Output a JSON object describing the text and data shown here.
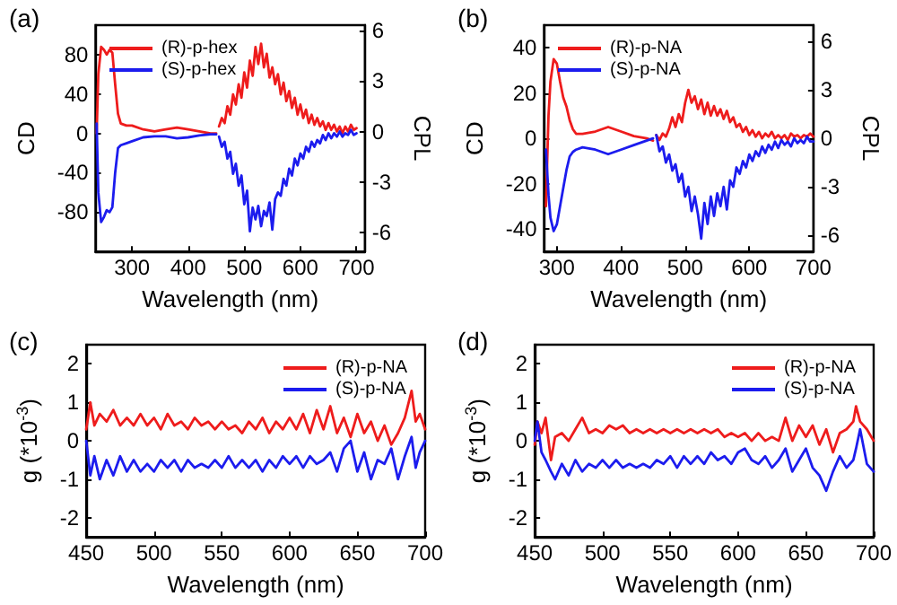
{
  "chart_data": [
    {
      "type": "line",
      "title": "(a)",
      "xlabel": "Wavelength (nm)",
      "ylabel": "CD",
      "y2label": "CPL",
      "xlim": [
        235,
        715
      ],
      "xticks": [
        300,
        400,
        500,
        600,
        700
      ],
      "ylim": [
        -120,
        110
      ],
      "yticks": [
        -80,
        -40,
        0,
        40,
        80
      ],
      "y2lim": [
        -7.1,
        6.3
      ],
      "y2ticks": [
        -6,
        -3,
        0,
        3,
        6
      ],
      "legend": "top left",
      "grid": false,
      "marker": "none",
      "line_style": "solid",
      "series": [
        {
          "name": "(R)-p-hex",
          "color": "#ee1c1c",
          "x": [
            237,
            240,
            245,
            250,
            255,
            260,
            265,
            270,
            275,
            280,
            290,
            300,
            320,
            340,
            360,
            380,
            400,
            420,
            440,
            450
          ],
          "values": [
            0,
            60,
            88,
            85,
            80,
            85,
            82,
            50,
            20,
            10,
            8,
            8,
            4,
            2,
            4,
            6,
            4,
            2,
            0,
            0
          ]
        },
        {
          "name": "(S)-p-hex",
          "color": "#1c1cee",
          "x": [
            237,
            240,
            245,
            250,
            255,
            260,
            265,
            270,
            275,
            280,
            290,
            300,
            320,
            340,
            360,
            380,
            400,
            420,
            440,
            450
          ],
          "values": [
            10,
            -60,
            -90,
            -85,
            -78,
            -80,
            -75,
            -40,
            -15,
            -12,
            -10,
            -8,
            -4,
            -3,
            -3,
            -5,
            -4,
            -2,
            -1,
            -1
          ]
        },
        {
          "color": "#ee1c1c",
          "axis": "y2",
          "x": [
            455,
            460,
            465,
            470,
            475,
            480,
            485,
            490,
            495,
            500,
            505,
            510,
            515,
            520,
            525,
            530,
            535,
            540,
            545,
            550,
            555,
            560,
            565,
            570,
            575,
            580,
            585,
            590,
            595,
            600,
            605,
            610,
            615,
            620,
            625,
            630,
            635,
            640,
            645,
            650,
            655,
            660,
            665,
            670,
            675,
            680,
            685,
            690,
            695,
            700
          ],
          "values": [
            0.3,
            0.8,
            0.5,
            1.5,
            1.0,
            2.2,
            1.6,
            2.8,
            2.0,
            3.5,
            2.6,
            4.2,
            3.3,
            5.0,
            4.0,
            5.2,
            3.8,
            4.6,
            3.2,
            3.8,
            2.8,
            3.4,
            2.2,
            2.9,
            1.8,
            2.4,
            1.4,
            2.0,
            1.0,
            1.6,
            0.8,
            1.3,
            0.5,
            1.0,
            0.4,
            0.8,
            0.3,
            0.6,
            0.1,
            0.5,
            0.1,
            0.4,
            0.0,
            0.3,
            -0.1,
            0.3,
            0.0,
            0.4,
            0.1,
            0.2
          ]
        },
        {
          "color": "#1c1cee",
          "axis": "y2",
          "x": [
            455,
            460,
            465,
            470,
            475,
            480,
            485,
            490,
            495,
            500,
            505,
            510,
            515,
            520,
            525,
            530,
            535,
            540,
            545,
            550,
            555,
            560,
            565,
            570,
            575,
            580,
            585,
            590,
            595,
            600,
            605,
            610,
            615,
            620,
            625,
            630,
            635,
            640,
            645,
            650,
            655,
            660,
            665,
            670,
            675,
            680,
            685,
            690,
            695,
            700
          ],
          "values": [
            -0.3,
            -0.9,
            -0.6,
            -1.6,
            -1.2,
            -2.5,
            -1.9,
            -3.2,
            -2.6,
            -4.3,
            -3.5,
            -5.9,
            -4.5,
            -5.2,
            -4.4,
            -5.6,
            -4.7,
            -5.0,
            -4.2,
            -5.8,
            -4.0,
            -3.6,
            -3.8,
            -2.8,
            -3.2,
            -2.2,
            -2.6,
            -1.6,
            -2.0,
            -1.3,
            -1.6,
            -0.9,
            -1.2,
            -0.6,
            -0.9,
            -0.5,
            -0.7,
            -0.2,
            -0.5,
            -0.1,
            -0.4,
            -0.1,
            -0.3,
            0.0,
            -0.3,
            -0.1,
            -0.2,
            0.1,
            -0.2,
            -0.1
          ]
        }
      ]
    },
    {
      "type": "line",
      "title": "(b)",
      "xlabel": "Wavelength (nm)",
      "ylabel": "CD",
      "y2label": "CPL",
      "xlim": [
        280,
        700
      ],
      "xticks": [
        300,
        400,
        500,
        600,
        700
      ],
      "ylim": [
        -50,
        50
      ],
      "yticks": [
        -40,
        -20,
        0,
        20,
        40
      ],
      "y2lim": [
        -7,
        7
      ],
      "y2ticks": [
        -6,
        -3,
        0,
        3,
        6
      ],
      "legend": "top left",
      "grid": false,
      "marker": "none",
      "line_style": "solid",
      "series": [
        {
          "name": "(R)-p-NA",
          "color": "#ee1c1c",
          "x": [
            283,
            287,
            290,
            295,
            300,
            305,
            310,
            315,
            320,
            325,
            330,
            340,
            360,
            380,
            400,
            420,
            440,
            450
          ],
          "values": [
            -30,
            10,
            25,
            35,
            33,
            25,
            18,
            14,
            8,
            4,
            2,
            2,
            3,
            5,
            3,
            1,
            0,
            -1
          ]
        },
        {
          "name": "(S)-p-NA",
          "color": "#1c1cee",
          "x": [
            283,
            287,
            290,
            295,
            300,
            305,
            310,
            315,
            320,
            325,
            330,
            340,
            360,
            380,
            400,
            420,
            440,
            450
          ],
          "values": [
            -5,
            -25,
            -35,
            -41,
            -38,
            -30,
            -22,
            -14,
            -8,
            -6,
            -5,
            -4,
            -5,
            -7,
            -5,
            -3,
            -1,
            0
          ]
        },
        {
          "color": "#ee1c1c",
          "axis": "y2",
          "x": [
            455,
            460,
            465,
            470,
            475,
            480,
            485,
            490,
            495,
            500,
            505,
            510,
            515,
            520,
            525,
            530,
            535,
            540,
            545,
            550,
            555,
            560,
            565,
            570,
            575,
            580,
            585,
            590,
            595,
            600,
            605,
            610,
            615,
            620,
            625,
            630,
            635,
            640,
            645,
            650,
            655,
            660,
            665,
            670,
            675,
            680,
            685,
            690,
            695,
            700
          ],
          "values": [
            0.2,
            -0.1,
            0.3,
            0.1,
            0.6,
            1.3,
            0.7,
            1.5,
            1.0,
            2.2,
            3.0,
            2.2,
            2.6,
            1.8,
            2.4,
            1.5,
            2.2,
            1.4,
            2.0,
            1.4,
            1.8,
            1.2,
            1.7,
            1.0,
            1.3,
            0.7,
            0.9,
            0.4,
            0.7,
            0.2,
            0.5,
            0.1,
            0.4,
            0.0,
            0.3,
            0.1,
            0.4,
            0.0,
            0.2,
            0.0,
            0.2,
            -0.1,
            0.3,
            0.1,
            0.2,
            0.0,
            0.2,
            0.1,
            0.3,
            0.1
          ]
        },
        {
          "color": "#1c1cee",
          "axis": "y2",
          "x": [
            455,
            460,
            465,
            470,
            475,
            480,
            485,
            490,
            495,
            500,
            505,
            510,
            515,
            520,
            525,
            530,
            535,
            540,
            545,
            550,
            555,
            560,
            565,
            570,
            575,
            580,
            585,
            590,
            595,
            600,
            605,
            610,
            615,
            620,
            625,
            630,
            635,
            640,
            645,
            650,
            655,
            660,
            665,
            670,
            675,
            680,
            685,
            690,
            695,
            700
          ],
          "values": [
            0.2,
            -0.8,
            -0.5,
            -1.5,
            -1.0,
            -2.0,
            -1.6,
            -2.7,
            -2.2,
            -3.6,
            -3.0,
            -4.5,
            -3.6,
            -4.7,
            -6.2,
            -4.0,
            -5.3,
            -3.6,
            -4.8,
            -3.4,
            -4.2,
            -3.0,
            -4.4,
            -2.6,
            -3.0,
            -1.8,
            -2.2,
            -1.4,
            -1.8,
            -1.0,
            -1.4,
            -0.8,
            -1.1,
            -0.5,
            -0.9,
            -0.4,
            -0.7,
            -0.2,
            -0.6,
            -0.1,
            -0.4,
            -0.2,
            -0.5,
            0.0,
            -0.3,
            -0.1,
            -0.3,
            0.1,
            -0.2,
            -0.2
          ]
        }
      ]
    },
    {
      "type": "line",
      "title": "(c)",
      "xlabel": "Wavelength (nm)",
      "ylabel": "g (*10$^{-3}$)",
      "xlim": [
        450,
        700
      ],
      "xticks": [
        450,
        500,
        550,
        600,
        650,
        700
      ],
      "ylim": [
        -2.5,
        2.5
      ],
      "yticks": [
        -2,
        -1,
        0,
        1,
        2
      ],
      "legend": "top right",
      "grid": false,
      "marker": "none",
      "line_style": "solid",
      "series": [
        {
          "name": "(R)-p-NA",
          "color": "#ee1c1c",
          "x": [
            450,
            453,
            456,
            460,
            465,
            470,
            475,
            480,
            485,
            490,
            495,
            500,
            505,
            510,
            515,
            520,
            525,
            530,
            535,
            540,
            545,
            550,
            555,
            560,
            565,
            570,
            575,
            580,
            585,
            590,
            595,
            600,
            605,
            610,
            615,
            620,
            625,
            630,
            635,
            640,
            645,
            650,
            655,
            660,
            665,
            670,
            675,
            680,
            685,
            690,
            693,
            696,
            700
          ],
          "values": [
            0.3,
            1.0,
            0.4,
            0.7,
            0.5,
            0.8,
            0.4,
            0.6,
            0.4,
            0.7,
            0.4,
            0.6,
            0.3,
            0.7,
            0.4,
            0.5,
            0.3,
            0.6,
            0.4,
            0.5,
            0.3,
            0.5,
            0.3,
            0.4,
            0.2,
            0.5,
            0.3,
            0.6,
            0.2,
            0.5,
            0.3,
            0.6,
            0.3,
            0.7,
            0.2,
            0.8,
            0.3,
            0.9,
            0.2,
            0.6,
            0.1,
            0.7,
            0.2,
            0.5,
            0.0,
            0.4,
            -0.1,
            0.2,
            0.6,
            1.3,
            0.5,
            0.7,
            0.3
          ]
        },
        {
          "name": "(S)-p-NA",
          "color": "#1c1cee",
          "x": [
            450,
            453,
            456,
            460,
            465,
            470,
            475,
            480,
            485,
            490,
            495,
            500,
            505,
            510,
            515,
            520,
            525,
            530,
            535,
            540,
            545,
            550,
            555,
            560,
            565,
            570,
            575,
            580,
            585,
            590,
            595,
            600,
            605,
            610,
            615,
            620,
            625,
            630,
            635,
            640,
            645,
            650,
            655,
            660,
            665,
            670,
            675,
            680,
            685,
            690,
            693,
            696,
            700
          ],
          "values": [
            0.0,
            -0.9,
            -0.4,
            -1.0,
            -0.5,
            -0.9,
            -0.4,
            -0.8,
            -0.5,
            -0.8,
            -0.6,
            -0.8,
            -0.5,
            -0.7,
            -0.5,
            -0.8,
            -0.5,
            -0.7,
            -0.6,
            -0.7,
            -0.5,
            -0.7,
            -0.4,
            -0.7,
            -0.5,
            -0.7,
            -0.5,
            -0.8,
            -0.5,
            -0.7,
            -0.4,
            -0.6,
            -0.4,
            -0.7,
            -0.4,
            -0.6,
            -0.5,
            -0.3,
            -0.8,
            -0.2,
            0.0,
            -0.8,
            -0.3,
            -1.0,
            -0.5,
            -0.6,
            -0.2,
            -1.0,
            -0.4,
            0.1,
            -0.7,
            -0.3,
            0.0
          ]
        }
      ]
    },
    {
      "type": "line",
      "title": "(d)",
      "xlabel": "Wavelength (nm)",
      "ylabel": "g (*10$^{-3}$)",
      "xlim": [
        450,
        700
      ],
      "xticks": [
        450,
        500,
        550,
        600,
        650,
        700
      ],
      "ylim": [
        -2.5,
        2.5
      ],
      "yticks": [
        -2,
        -1,
        0,
        1,
        2
      ],
      "legend": "top right",
      "grid": false,
      "marker": "none",
      "line_style": "solid",
      "series": [
        {
          "name": "(R)-p-NA",
          "color": "#ee1c1c",
          "x": [
            450,
            452,
            455,
            458,
            462,
            465,
            470,
            475,
            480,
            485,
            490,
            495,
            500,
            505,
            510,
            515,
            520,
            525,
            530,
            535,
            540,
            545,
            550,
            555,
            560,
            565,
            570,
            575,
            580,
            585,
            590,
            595,
            600,
            605,
            610,
            615,
            620,
            625,
            630,
            635,
            640,
            645,
            650,
            655,
            660,
            665,
            670,
            675,
            680,
            685,
            687,
            690,
            695,
            700
          ],
          "values": [
            -0.1,
            0.5,
            0.2,
            0.6,
            -0.5,
            0.1,
            0.2,
            0.0,
            0.3,
            0.6,
            0.2,
            0.3,
            0.2,
            0.4,
            0.3,
            0.4,
            0.2,
            0.3,
            0.2,
            0.3,
            0.2,
            0.3,
            0.2,
            0.3,
            0.2,
            0.3,
            0.2,
            0.3,
            0.2,
            0.3,
            0.1,
            0.2,
            0.1,
            0.2,
            0.0,
            0.2,
            0.0,
            0.1,
            0.0,
            0.6,
            0.0,
            0.4,
            0.1,
            0.4,
            -0.1,
            0.3,
            -0.3,
            0.2,
            0.3,
            0.5,
            0.9,
            0.5,
            0.3,
            0.0
          ]
        },
        {
          "name": "(S)-p-NA",
          "color": "#1c1cee",
          "x": [
            450,
            452,
            455,
            458,
            462,
            465,
            470,
            475,
            480,
            485,
            490,
            495,
            500,
            505,
            510,
            515,
            520,
            525,
            530,
            535,
            540,
            545,
            550,
            555,
            560,
            565,
            570,
            575,
            580,
            585,
            590,
            595,
            600,
            605,
            610,
            615,
            620,
            625,
            630,
            635,
            640,
            645,
            650,
            655,
            660,
            665,
            670,
            675,
            680,
            685,
            687,
            690,
            695,
            700
          ],
          "values": [
            0.0,
            0.5,
            -0.3,
            -0.5,
            -0.8,
            -1.0,
            -0.6,
            -0.9,
            -0.5,
            -0.8,
            -0.6,
            -0.7,
            -0.5,
            -0.7,
            -0.5,
            -0.7,
            -0.6,
            -0.7,
            -0.6,
            -0.7,
            -0.5,
            -0.6,
            -0.4,
            -0.7,
            -0.4,
            -0.6,
            -0.4,
            -0.6,
            -0.3,
            -0.5,
            -0.4,
            -0.6,
            -0.3,
            -0.2,
            -0.5,
            -0.6,
            -0.4,
            -0.7,
            -0.5,
            -0.2,
            -0.8,
            -0.5,
            -0.2,
            -0.7,
            -0.9,
            -1.3,
            -0.8,
            -0.4,
            -0.7,
            -0.5,
            -0.2,
            0.3,
            -0.6,
            -0.8
          ]
        }
      ]
    }
  ]
}
